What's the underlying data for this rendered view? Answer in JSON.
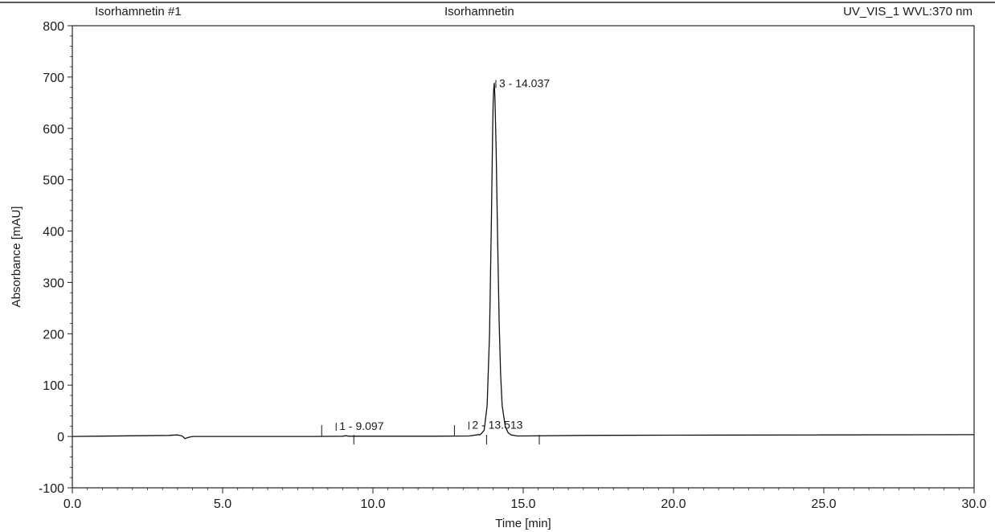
{
  "header": {
    "left": "Isorhamnetin #1",
    "center": "Isorhamnetin",
    "right": "UV_VIS_1 WVL:370 nm"
  },
  "chart_data": {
    "type": "line",
    "xlabel": "Time [min]",
    "ylabel": "Absorbance [mAU]",
    "xlim": [
      0.0,
      30.0
    ],
    "ylim": [
      -100,
      800
    ],
    "xticks": [
      0.0,
      5.0,
      10.0,
      15.0,
      20.0,
      25.0,
      30.0
    ],
    "xtick_labels": [
      "0.0",
      "5.0",
      "10.0",
      "15.0",
      "20.0",
      "25.0",
      "30.0"
    ],
    "yticks": [
      -100,
      0,
      100,
      200,
      300,
      400,
      500,
      600,
      700,
      800
    ],
    "ytick_labels": [
      "-100",
      "0",
      "100",
      "200",
      "300",
      "400",
      "500",
      "600",
      "700",
      "800"
    ],
    "grid": false,
    "series": [
      {
        "x": [
          0.0,
          3.2,
          3.5,
          3.65,
          3.75,
          3.85,
          4.0,
          8.0,
          9.0,
          9.1,
          9.2,
          12.0,
          13.2,
          13.45,
          13.5,
          13.55,
          13.6,
          13.7,
          13.8,
          13.88,
          13.94,
          13.98,
          14.0,
          14.02,
          14.037,
          14.06,
          14.1,
          14.15,
          14.2,
          14.25,
          14.3,
          14.4,
          14.5,
          14.6,
          14.8,
          15.0,
          17.0,
          20.0,
          25.0,
          30.0
        ],
        "y": [
          0,
          2,
          3,
          1,
          -4,
          -2,
          0,
          0,
          0.5,
          1.5,
          0.5,
          0.5,
          1,
          3,
          4,
          3,
          5,
          12,
          60,
          200,
          420,
          590,
          650,
          676,
          688,
          660,
          560,
          380,
          220,
          120,
          60,
          20,
          7,
          3,
          1,
          1,
          2,
          2.5,
          3,
          3.5
        ]
      }
    ],
    "peaks": [
      {
        "label": "1 - 9.097",
        "rt": 9.097,
        "height": 1.5
      },
      {
        "label": "2 - 13.513",
        "rt": 13.513,
        "height": 4
      },
      {
        "label": "3 - 14.037",
        "rt": 14.037,
        "height": 688
      }
    ]
  }
}
